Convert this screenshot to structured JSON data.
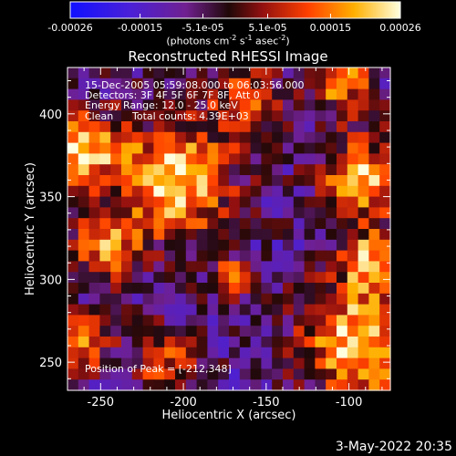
{
  "chart_data": {
    "type": "heatmap",
    "title": "Reconstructed RHESSI Image",
    "xlabel": "Heliocentric X (arcsec)",
    "ylabel": "Heliocentric Y (arcsec)",
    "xlim": [
      -270,
      -75
    ],
    "ylim": [
      233,
      428
    ],
    "x_ticks": [
      -250,
      -200,
      -150,
      -100
    ],
    "y_ticks": [
      250,
      300,
      350,
      400
    ],
    "colorbar": {
      "range": [
        -0.00026,
        0.00026
      ],
      "tick_values": [
        -0.00026,
        -0.00015,
        -5.1e-05,
        5.1e-05,
        0.00015,
        0.00026
      ],
      "tick_labels": [
        "-0.00026",
        "-0.00015",
        "-5.1e-05",
        "5.1e-05",
        "0.00015",
        "0.00026"
      ],
      "units_base": "(photons cm",
      "units_exp1": "-2",
      "units_mid1": " s",
      "units_exp2": "-1",
      "units_mid2": " asec",
      "units_exp3": "-2",
      "units_end": ")"
    },
    "annotations": {
      "time_range": "15-Dec-2005 05:59:08.000 to 06:03:56.000",
      "detectors": "Detectors: 3F 4F 5F 6F 7F 8F, Att 0",
      "energy": "Energy Range: 12.0 - 25.0 keV",
      "clean": "Clean",
      "counts": "Total counts: 4.39E+03",
      "peak": "Position of Peak = [-212,348]"
    },
    "peak_position": [
      -212,
      348
    ],
    "grid": {
      "nx": 30,
      "ny": 30
    }
  },
  "footer": {
    "timestamp": "3-May-2022 20:35"
  },
  "colors": {
    "background": "#000000",
    "text": "#ffffff"
  }
}
